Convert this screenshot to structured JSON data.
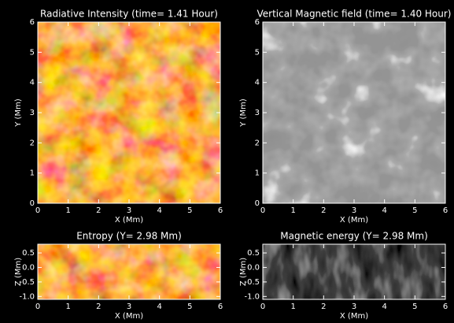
{
  "chart_data": [
    {
      "type": "image",
      "title": "Radiative Intensity (time= 1.41 Hour)",
      "xlabel": "X (Mm)",
      "ylabel": "Y (Mm)",
      "xlim": [
        0,
        6
      ],
      "ylim": [
        0,
        6
      ],
      "xticks": [
        0,
        1,
        2,
        3,
        4,
        5,
        6
      ],
      "yticks": [
        0,
        1,
        2,
        3,
        4,
        5,
        6
      ],
      "colormap": "heat"
    },
    {
      "type": "image",
      "title": "Vertical Magnetic field (time= 1.40 Hour)",
      "xlabel": "X (Mm)",
      "ylabel": "Y (Mm)",
      "xlim": [
        0,
        6
      ],
      "ylim": [
        0,
        6
      ],
      "xticks": [
        0,
        1,
        2,
        3,
        4,
        5,
        6
      ],
      "yticks": [
        0,
        1,
        2,
        3,
        4,
        5,
        6
      ],
      "colormap": "gray"
    },
    {
      "type": "image",
      "title": "Entropy (Y= 2.98 Mm)",
      "xlabel": "X (Mm)",
      "ylabel": "Z (Mm)",
      "xlim": [
        0,
        6
      ],
      "ylim": [
        -1.1,
        0.8
      ],
      "xticks": [
        0,
        1,
        2,
        3,
        4,
        5,
        6
      ],
      "yticks": [
        {
          "value": -1,
          "label": "-1.0"
        },
        -0.5,
        {
          "value": 0,
          "label": "0.0"
        },
        0.5
      ],
      "colormap": "heat"
    },
    {
      "type": "image",
      "title": "Magnetic energy (Y= 2.98 Mm)",
      "xlabel": "X (Mm)",
      "ylabel": "Z (Mm)",
      "xlim": [
        0,
        6
      ],
      "ylim": [
        -1.1,
        0.8
      ],
      "xticks": [
        0,
        1,
        2,
        3,
        4,
        5,
        6
      ],
      "yticks": [
        {
          "value": -1,
          "label": "-1.0"
        },
        -0.5,
        {
          "value": 0,
          "label": "0.0"
        },
        0.5
      ],
      "colormap": "dark"
    }
  ]
}
